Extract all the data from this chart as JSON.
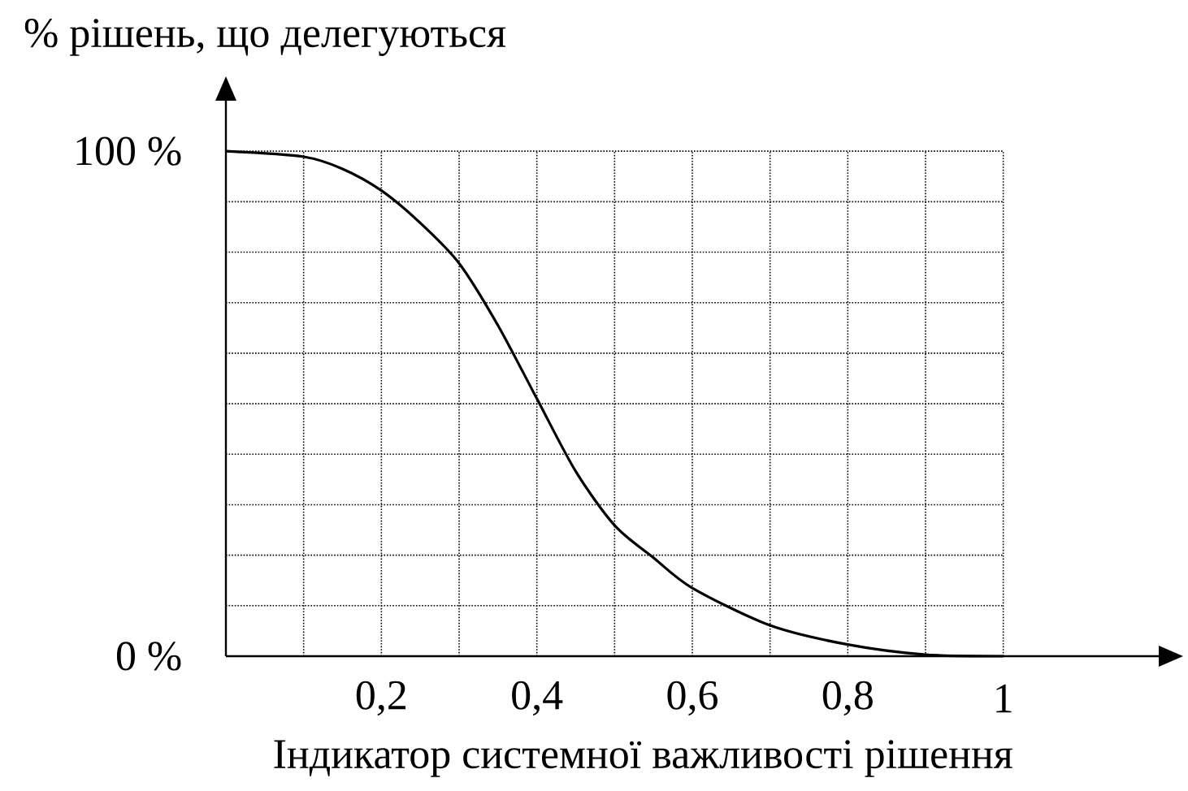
{
  "chart_data": {
    "type": "line",
    "xlabel": "Індикатор системної важливості рішення",
    "ylabel": "% рішень, що делегуються",
    "x": [
      0,
      0.1,
      0.15,
      0.2,
      0.25,
      0.3,
      0.35,
      0.4,
      0.45,
      0.5,
      0.55,
      0.6,
      0.7,
      0.8,
      0.9,
      1
    ],
    "values": [
      100,
      98.9,
      96.5,
      92.2,
      85.8,
      77.8,
      65.5,
      51,
      36.6,
      25.9,
      19.5,
      13.5,
      6.1,
      2.3,
      0.3,
      0
    ],
    "color": "#000000",
    "xlim": [
      0,
      1.2
    ],
    "ylim": [
      0,
      110
    ],
    "xticks": [
      {
        "value": 0.1,
        "label": null
      },
      {
        "value": 0.2,
        "label": "0,2"
      },
      {
        "value": 0.3,
        "label": null
      },
      {
        "value": 0.4,
        "label": "0,4"
      },
      {
        "value": 0.5,
        "label": null
      },
      {
        "value": 0.6,
        "label": "0,6"
      },
      {
        "value": 0.7,
        "label": null
      },
      {
        "value": 0.8,
        "label": "0,8"
      },
      {
        "value": 0.9,
        "label": null
      },
      1
    ],
    "yticks": [
      {
        "value": 0,
        "label": "0 %"
      },
      {
        "value": 10,
        "label": null
      },
      {
        "value": 20,
        "label": null
      },
      {
        "value": 30,
        "label": null
      },
      {
        "value": 40,
        "label": null
      },
      {
        "value": 50,
        "label": null
      },
      {
        "value": 60,
        "label": null
      },
      {
        "value": 70,
        "label": null
      },
      {
        "value": 80,
        "label": null
      },
      {
        "value": 90,
        "label": null
      },
      {
        "value": 100,
        "label": "100 %"
      }
    ],
    "grid": true
  }
}
